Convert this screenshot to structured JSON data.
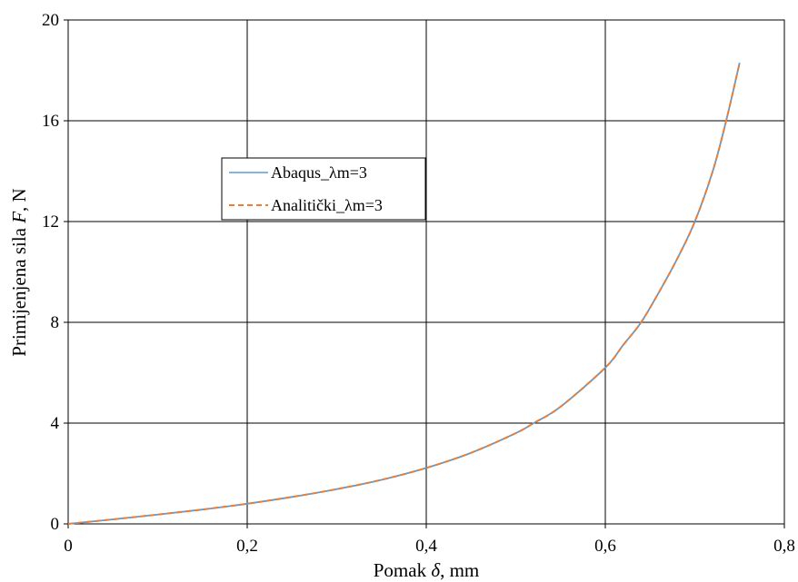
{
  "chart_data": {
    "type": "line",
    "xlabel": {
      "prefix": "Pomak ",
      "symbol": "δ",
      "suffix": ", mm"
    },
    "ylabel": {
      "prefix": "Primijenjena sila ",
      "symbol": "F",
      "suffix": ", N"
    },
    "xlim": [
      0,
      0.8
    ],
    "ylim": [
      0,
      20
    ],
    "x_ticks": [
      0,
      0.2,
      0.4,
      0.6,
      0.8
    ],
    "x_tick_labels": [
      "0",
      "0,2",
      "0,4",
      "0,6",
      "0,8"
    ],
    "y_ticks": [
      0,
      4,
      8,
      12,
      16,
      20
    ],
    "y_tick_labels": [
      "0",
      "4",
      "8",
      "12",
      "16",
      "20"
    ],
    "grid": true,
    "legend_position": "upper-left-center",
    "series": [
      {
        "name": "Abaqus_λm=3",
        "color": "#5b9bd5",
        "dash": "solid",
        "x": [
          0,
          0.05,
          0.1,
          0.15,
          0.2,
          0.25,
          0.3,
          0.35,
          0.4,
          0.45,
          0.5,
          0.52,
          0.55,
          0.6,
          0.62,
          0.64,
          0.66,
          0.68,
          0.7,
          0.72,
          0.735,
          0.75
        ],
        "y": [
          0,
          0.18,
          0.37,
          0.57,
          0.8,
          1.07,
          1.38,
          1.75,
          2.22,
          2.82,
          3.6,
          4.0,
          4.65,
          6.2,
          7.1,
          8.0,
          9.2,
          10.5,
          12.0,
          14.0,
          16.0,
          18.3
        ]
      },
      {
        "name": "Analitički_λm=3",
        "color": "#ed7d31",
        "dash": "dashed",
        "x": [
          0,
          0.05,
          0.1,
          0.15,
          0.2,
          0.25,
          0.3,
          0.35,
          0.4,
          0.45,
          0.5,
          0.52,
          0.55,
          0.6,
          0.62,
          0.64,
          0.66,
          0.68,
          0.7,
          0.72,
          0.735,
          0.75
        ],
        "y": [
          0,
          0.18,
          0.37,
          0.57,
          0.8,
          1.07,
          1.38,
          1.75,
          2.22,
          2.82,
          3.6,
          4.0,
          4.65,
          6.2,
          7.1,
          8.0,
          9.2,
          10.5,
          12.0,
          14.0,
          16.0,
          18.3
        ]
      }
    ]
  }
}
